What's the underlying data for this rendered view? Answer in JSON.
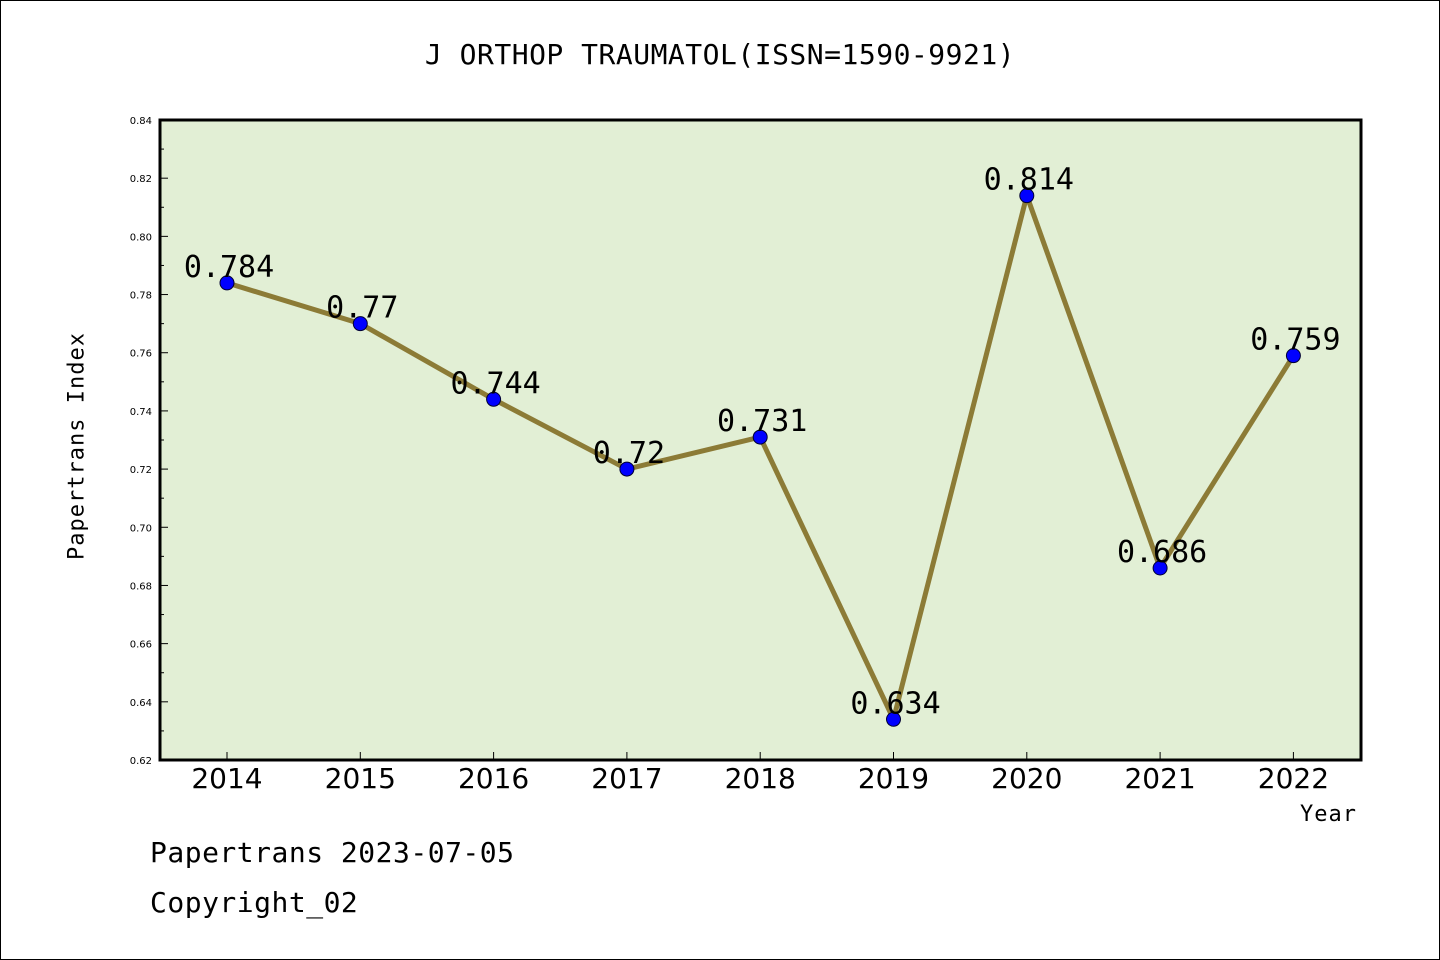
{
  "chart_data": {
    "type": "line",
    "title": "J ORTHOP TRAUMATOL(ISSN=1590-9921)",
    "xlabel": "Year",
    "ylabel": "Papertrans Index",
    "categories": [
      "2014",
      "2015",
      "2016",
      "2017",
      "2018",
      "2019",
      "2020",
      "2021",
      "2022"
    ],
    "values": [
      0.784,
      0.77,
      0.744,
      0.72,
      0.731,
      0.634,
      0.814,
      0.686,
      0.759
    ],
    "data_labels": [
      "0.784",
      "0.77",
      "0.744",
      "0.72",
      "0.731",
      "0.634",
      "0.814",
      "0.686",
      "0.759"
    ],
    "ylim": [
      0.62,
      0.84
    ],
    "y_ticks": [
      "0.62",
      "0.64",
      "0.66",
      "0.68",
      "0.70",
      "0.72",
      "0.74",
      "0.76",
      "0.78",
      "0.80",
      "0.82",
      "0.84"
    ],
    "grid": false,
    "legend": "none",
    "colors": {
      "plot_background": "#E2EFD5",
      "line": "#8C7B36",
      "marker": "#0000FF"
    }
  },
  "footer": {
    "date_line": "Papertrans 2023-07-05",
    "copyright_line": "Copyright_02"
  }
}
